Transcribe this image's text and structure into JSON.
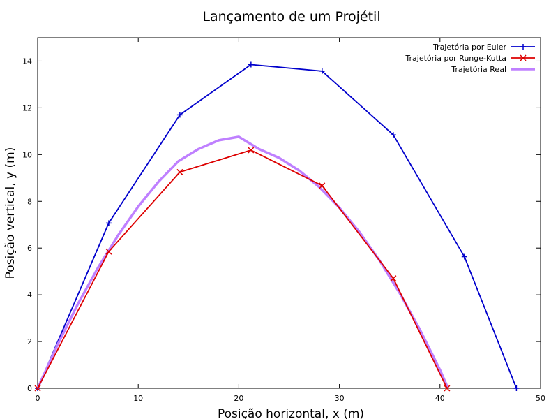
{
  "chart_data": {
    "type": "line",
    "title": "Lançamento de um Projétil",
    "xlabel": "Posição horizontal, x (m)",
    "ylabel": "Posição vertical, y (m)",
    "xlim": [
      0,
      50
    ],
    "ylim": [
      0,
      15
    ],
    "xticks": [
      0,
      10,
      20,
      30,
      40,
      50
    ],
    "yticks": [
      0,
      2,
      4,
      6,
      8,
      10,
      12,
      14
    ],
    "grid": false,
    "legend_position": "top-right",
    "series": [
      {
        "name": "Trajetória por Euler",
        "color": "#0000cc",
        "marker": "plus",
        "x": [
          0,
          7.07,
          14.14,
          21.21,
          28.28,
          35.36,
          42.43,
          47.6
        ],
        "y": [
          0,
          7.07,
          11.7,
          13.85,
          13.57,
          10.84,
          5.63,
          0
        ]
      },
      {
        "name": "Trajetória por Runge-Kutta",
        "color": "#dd0000",
        "marker": "cross",
        "x": [
          0,
          7.07,
          14.14,
          21.21,
          28.28,
          35.36,
          40.7
        ],
        "y": [
          0,
          5.85,
          9.25,
          10.19,
          8.67,
          4.7,
          0
        ]
      },
      {
        "name": "Trajetória Real",
        "color": "#bf80ff",
        "marker": "none",
        "x": [
          0,
          2,
          4,
          6,
          8,
          10,
          12,
          14,
          16,
          18,
          20,
          22,
          24,
          26,
          28,
          30,
          32,
          34,
          36,
          38,
          40,
          40.8
        ],
        "y": [
          0,
          1.88,
          3.61,
          5.16,
          6.55,
          7.78,
          8.83,
          9.72,
          10.24,
          10.61,
          10.76,
          10.24,
          9.86,
          9.32,
          8.61,
          7.73,
          6.68,
          5.46,
          4.07,
          2.51,
          0.79,
          0
        ]
      }
    ]
  }
}
